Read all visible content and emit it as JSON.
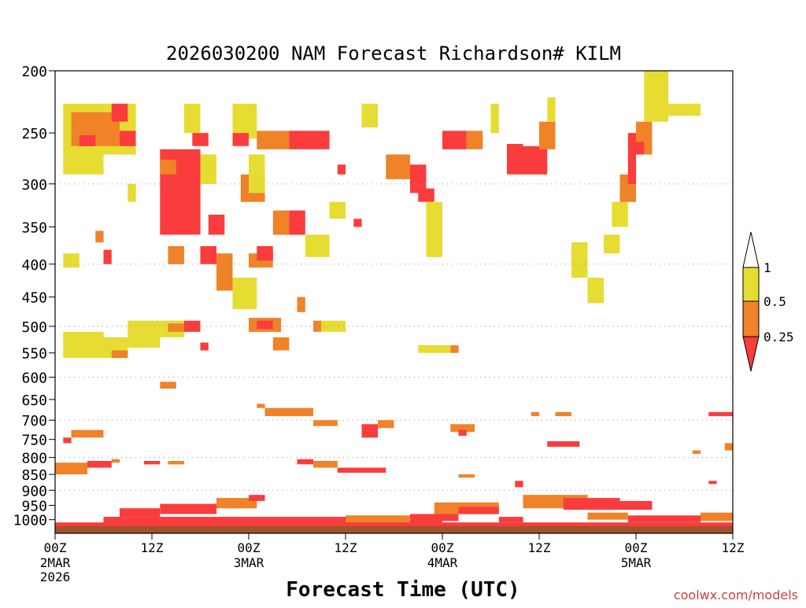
{
  "chart_data": {
    "type": "heatmap",
    "title": "2026030200 NAM Forecast Richardson# KILM",
    "xlabel": "Forecast Time (UTC)",
    "ylabel": "",
    "x_range_hours": [
      0,
      84
    ],
    "pressure_levels": [
      "200",
      "250",
      "300",
      "350",
      "400",
      "450",
      "500",
      "550",
      "600",
      "650",
      "700",
      "750",
      "800",
      "850",
      "900",
      "950",
      "1000"
    ],
    "pressure_range_hPa": [
      200,
      1050
    ],
    "gridlines_hPa": [
      300,
      400,
      500,
      600,
      700,
      800,
      900
    ],
    "x_ticks": [
      {
        "hour": 0,
        "label": "00Z",
        "date": "2MAR",
        "year": "2026"
      },
      {
        "hour": 12,
        "label": "12Z",
        "date": "",
        "year": ""
      },
      {
        "hour": 24,
        "label": "00Z",
        "date": "3MAR",
        "year": ""
      },
      {
        "hour": 36,
        "label": "12Z",
        "date": "",
        "year": ""
      },
      {
        "hour": 48,
        "label": "00Z",
        "date": "4MAR",
        "year": ""
      },
      {
        "hour": 60,
        "label": "12Z",
        "date": "",
        "year": ""
      },
      {
        "hour": 72,
        "label": "00Z",
        "date": "5MAR",
        "year": ""
      },
      {
        "hour": 84,
        "label": "12Z",
        "date": "",
        "year": ""
      }
    ],
    "legend": {
      "placement": "right",
      "labels": [
        "1",
        "0.5",
        "0.25"
      ],
      "bins": [
        {
          "range": "0.5-1",
          "color": "#e6dc32"
        },
        {
          "range": "0.25-0.5",
          "color": "#f08228"
        },
        {
          "range": "<0.25",
          "color": "#fa3c3c"
        }
      ]
    },
    "colors": {
      "low": "#fa3c3c",
      "mid": "#f08228",
      "high": "#e6dc32",
      "ground": "#a0522d",
      "grid": "#a0a0a0"
    },
    "cells": [
      {
        "t0": 1,
        "t1": 10,
        "p0": 225,
        "p1": 270,
        "v": "high"
      },
      {
        "t0": 2,
        "t1": 8,
        "p0": 232,
        "p1": 262,
        "v": "mid"
      },
      {
        "t0": 7,
        "t1": 9,
        "p0": 225,
        "p1": 240,
        "v": "low"
      },
      {
        "t0": 3,
        "t1": 5,
        "p0": 252,
        "p1": 262,
        "v": "low"
      },
      {
        "t0": 1,
        "t1": 6,
        "p0": 270,
        "p1": 290,
        "v": "high"
      },
      {
        "t0": 8,
        "t1": 10,
        "p0": 248,
        "p1": 262,
        "v": "low"
      },
      {
        "t0": 9,
        "t1": 10,
        "p0": 300,
        "p1": 320,
        "v": "high"
      },
      {
        "t0": 13,
        "t1": 18,
        "p0": 265,
        "p1": 360,
        "v": "low"
      },
      {
        "t0": 13,
        "t1": 15,
        "p0": 275,
        "p1": 290,
        "v": "mid"
      },
      {
        "t0": 16,
        "t1": 18,
        "p0": 225,
        "p1": 250,
        "v": "high"
      },
      {
        "t0": 17,
        "t1": 19,
        "p0": 250,
        "p1": 262,
        "v": "low"
      },
      {
        "t0": 18,
        "t1": 20,
        "p0": 270,
        "p1": 300,
        "v": "high"
      },
      {
        "t0": 19,
        "t1": 21,
        "p0": 335,
        "p1": 360,
        "v": "low"
      },
      {
        "t0": 22,
        "t1": 25,
        "p0": 225,
        "p1": 255,
        "v": "high"
      },
      {
        "t0": 22,
        "t1": 24,
        "p0": 250,
        "p1": 262,
        "v": "low"
      },
      {
        "t0": 23,
        "t1": 26,
        "p0": 290,
        "p1": 320,
        "v": "mid"
      },
      {
        "t0": 24,
        "t1": 26,
        "p0": 270,
        "p1": 310,
        "v": "high"
      },
      {
        "t0": 25,
        "t1": 29,
        "p0": 248,
        "p1": 265,
        "v": "mid"
      },
      {
        "t0": 29,
        "t1": 34,
        "p0": 248,
        "p1": 265,
        "v": "low"
      },
      {
        "t0": 27,
        "t1": 29,
        "p0": 330,
        "p1": 360,
        "v": "mid"
      },
      {
        "t0": 29,
        "t1": 31,
        "p0": 330,
        "p1": 360,
        "v": "low"
      },
      {
        "t0": 31,
        "t1": 34,
        "p0": 360,
        "p1": 390,
        "v": "high"
      },
      {
        "t0": 34,
        "t1": 36,
        "p0": 320,
        "p1": 340,
        "v": "high"
      },
      {
        "t0": 35,
        "t1": 36,
        "p0": 280,
        "p1": 290,
        "v": "low"
      },
      {
        "t0": 37,
        "t1": 38,
        "p0": 340,
        "p1": 350,
        "v": "low"
      },
      {
        "t0": 38,
        "t1": 40,
        "p0": 225,
        "p1": 245,
        "v": "high"
      },
      {
        "t0": 41,
        "t1": 44,
        "p0": 270,
        "p1": 295,
        "v": "mid"
      },
      {
        "t0": 44,
        "t1": 46,
        "p0": 280,
        "p1": 310,
        "v": "low"
      },
      {
        "t0": 46,
        "t1": 48,
        "p0": 320,
        "p1": 390,
        "v": "high"
      },
      {
        "t0": 45,
        "t1": 47,
        "p0": 305,
        "p1": 320,
        "v": "low"
      },
      {
        "t0": 48,
        "t1": 51,
        "p0": 248,
        "p1": 265,
        "v": "low"
      },
      {
        "t0": 51,
        "t1": 53,
        "p0": 248,
        "p1": 265,
        "v": "mid"
      },
      {
        "t0": 54,
        "t1": 55,
        "p0": 225,
        "p1": 250,
        "v": "high"
      },
      {
        "t0": 56,
        "t1": 58,
        "p0": 260,
        "p1": 290,
        "v": "low"
      },
      {
        "t0": 58,
        "t1": 61,
        "p0": 262,
        "p1": 290,
        "v": "low"
      },
      {
        "t0": 60,
        "t1": 62,
        "p0": 240,
        "p1": 265,
        "v": "mid"
      },
      {
        "t0": 61,
        "t1": 62,
        "p0": 220,
        "p1": 240,
        "v": "high"
      },
      {
        "t0": 64,
        "t1": 66,
        "p0": 370,
        "p1": 420,
        "v": "high"
      },
      {
        "t0": 66,
        "t1": 68,
        "p0": 420,
        "p1": 460,
        "v": "high"
      },
      {
        "t0": 68,
        "t1": 70,
        "p0": 360,
        "p1": 385,
        "v": "high"
      },
      {
        "t0": 69,
        "t1": 71,
        "p0": 320,
        "p1": 350,
        "v": "high"
      },
      {
        "t0": 70,
        "t1": 72,
        "p0": 290,
        "p1": 320,
        "v": "mid"
      },
      {
        "t0": 71,
        "t1": 72,
        "p0": 250,
        "p1": 300,
        "v": "low"
      },
      {
        "t0": 72,
        "t1": 74,
        "p0": 240,
        "p1": 270,
        "v": "mid"
      },
      {
        "t0": 73,
        "t1": 76,
        "p0": 200,
        "p1": 240,
        "v": "high"
      },
      {
        "t0": 76,
        "t1": 80,
        "p0": 225,
        "p1": 235,
        "v": "high"
      },
      {
        "t0": 72,
        "t1": 73,
        "p0": 258,
        "p1": 270,
        "v": "low"
      },
      {
        "t0": 1,
        "t1": 3,
        "p0": 385,
        "p1": 405,
        "v": "high"
      },
      {
        "t0": 6,
        "t1": 7,
        "p0": 380,
        "p1": 400,
        "v": "low"
      },
      {
        "t0": 5,
        "t1": 6,
        "p0": 355,
        "p1": 370,
        "v": "mid"
      },
      {
        "t0": 14,
        "t1": 16,
        "p0": 375,
        "p1": 400,
        "v": "mid"
      },
      {
        "t0": 18,
        "t1": 20,
        "p0": 375,
        "p1": 400,
        "v": "low"
      },
      {
        "t0": 20,
        "t1": 22,
        "p0": 385,
        "p1": 440,
        "v": "mid"
      },
      {
        "t0": 22,
        "t1": 25,
        "p0": 420,
        "p1": 470,
        "v": "high"
      },
      {
        "t0": 24,
        "t1": 27,
        "p0": 385,
        "p1": 405,
        "v": "mid"
      },
      {
        "t0": 25,
        "t1": 27,
        "p0": 375,
        "p1": 395,
        "v": "low"
      },
      {
        "t0": 30,
        "t1": 31,
        "p0": 450,
        "p1": 475,
        "v": "mid"
      },
      {
        "t0": 1,
        "t1": 6,
        "p0": 510,
        "p1": 560,
        "v": "high"
      },
      {
        "t0": 6,
        "t1": 9,
        "p0": 520,
        "p1": 560,
        "v": "high"
      },
      {
        "t0": 7,
        "t1": 9,
        "p0": 545,
        "p1": 560,
        "v": "mid"
      },
      {
        "t0": 9,
        "t1": 13,
        "p0": 490,
        "p1": 540,
        "v": "high"
      },
      {
        "t0": 13,
        "t1": 16,
        "p0": 490,
        "p1": 520,
        "v": "high"
      },
      {
        "t0": 14,
        "t1": 16,
        "p0": 495,
        "p1": 510,
        "v": "mid"
      },
      {
        "t0": 16,
        "t1": 18,
        "p0": 490,
        "p1": 510,
        "v": "low"
      },
      {
        "t0": 18,
        "t1": 19,
        "p0": 530,
        "p1": 545,
        "v": "low"
      },
      {
        "t0": 24,
        "t1": 28,
        "p0": 485,
        "p1": 510,
        "v": "mid"
      },
      {
        "t0": 25,
        "t1": 27,
        "p0": 490,
        "p1": 505,
        "v": "low"
      },
      {
        "t0": 27,
        "t1": 29,
        "p0": 520,
        "p1": 545,
        "v": "mid"
      },
      {
        "t0": 32,
        "t1": 33,
        "p0": 490,
        "p1": 510,
        "v": "mid"
      },
      {
        "t0": 33,
        "t1": 36,
        "p0": 490,
        "p1": 510,
        "v": "high"
      },
      {
        "t0": 45,
        "t1": 49,
        "p0": 535,
        "p1": 550,
        "v": "high"
      },
      {
        "t0": 49,
        "t1": 50,
        "p0": 535,
        "p1": 550,
        "v": "mid"
      },
      {
        "t0": 13,
        "t1": 15,
        "p0": 610,
        "p1": 625,
        "v": "mid"
      },
      {
        "t0": 25,
        "t1": 26,
        "p0": 660,
        "p1": 670,
        "v": "mid"
      },
      {
        "t0": 26,
        "t1": 32,
        "p0": 670,
        "p1": 690,
        "v": "mid"
      },
      {
        "t0": 32,
        "t1": 35,
        "p0": 700,
        "p1": 715,
        "v": "mid"
      },
      {
        "t0": 38,
        "t1": 40,
        "p0": 710,
        "p1": 745,
        "v": "low"
      },
      {
        "t0": 40,
        "t1": 42,
        "p0": 700,
        "p1": 720,
        "v": "mid"
      },
      {
        "t0": 49,
        "t1": 52,
        "p0": 710,
        "p1": 730,
        "v": "mid"
      },
      {
        "t0": 50,
        "t1": 51,
        "p0": 725,
        "p1": 740,
        "v": "low"
      },
      {
        "t0": 59,
        "t1": 60,
        "p0": 680,
        "p1": 690,
        "v": "mid"
      },
      {
        "t0": 62,
        "t1": 64,
        "p0": 680,
        "p1": 690,
        "v": "mid"
      },
      {
        "t0": 81,
        "t1": 84,
        "p0": 680,
        "p1": 690,
        "v": "low"
      },
      {
        "t0": 2,
        "t1": 6,
        "p0": 725,
        "p1": 745,
        "v": "mid"
      },
      {
        "t0": 1,
        "t1": 2,
        "p0": 745,
        "p1": 760,
        "v": "low"
      },
      {
        "t0": 61,
        "t1": 65,
        "p0": 755,
        "p1": 770,
        "v": "low"
      },
      {
        "t0": 83,
        "t1": 84,
        "p0": 760,
        "p1": 780,
        "v": "mid"
      },
      {
        "t0": 79,
        "t1": 80,
        "p0": 780,
        "p1": 790,
        "v": "mid"
      },
      {
        "t0": 0,
        "t1": 4,
        "p0": 815,
        "p1": 850,
        "v": "mid"
      },
      {
        "t0": 4,
        "t1": 7,
        "p0": 810,
        "p1": 830,
        "v": "low"
      },
      {
        "t0": 7,
        "t1": 8,
        "p0": 805,
        "p1": 815,
        "v": "mid"
      },
      {
        "t0": 11,
        "t1": 13,
        "p0": 810,
        "p1": 820,
        "v": "low"
      },
      {
        "t0": 14,
        "t1": 16,
        "p0": 810,
        "p1": 820,
        "v": "mid"
      },
      {
        "t0": 30,
        "t1": 32,
        "p0": 805,
        "p1": 820,
        "v": "low"
      },
      {
        "t0": 32,
        "t1": 35,
        "p0": 810,
        "p1": 830,
        "v": "mid"
      },
      {
        "t0": 35,
        "t1": 41,
        "p0": 830,
        "p1": 845,
        "v": "low"
      },
      {
        "t0": 50,
        "t1": 52,
        "p0": 850,
        "p1": 860,
        "v": "mid"
      },
      {
        "t0": 57,
        "t1": 58,
        "p0": 870,
        "p1": 890,
        "v": "low"
      },
      {
        "t0": 81,
        "t1": 82,
        "p0": 870,
        "p1": 880,
        "v": "low"
      },
      {
        "t0": 8,
        "t1": 13,
        "p0": 960,
        "p1": 990,
        "v": "low"
      },
      {
        "t0": 13,
        "t1": 20,
        "p0": 945,
        "p1": 980,
        "v": "low"
      },
      {
        "t0": 20,
        "t1": 25,
        "p0": 925,
        "p1": 960,
        "v": "mid"
      },
      {
        "t0": 24,
        "t1": 26,
        "p0": 915,
        "p1": 935,
        "v": "low"
      },
      {
        "t0": 6,
        "t1": 48,
        "p0": 990,
        "p1": 1015,
        "v": "low"
      },
      {
        "t0": 26,
        "t1": 36,
        "p0": 995,
        "p1": 1015,
        "v": "low"
      },
      {
        "t0": 36,
        "t1": 44,
        "p0": 985,
        "p1": 1010,
        "v": "mid"
      },
      {
        "t0": 44,
        "t1": 50,
        "p0": 980,
        "p1": 1005,
        "v": "low"
      },
      {
        "t0": 47,
        "t1": 55,
        "p0": 940,
        "p1": 980,
        "v": "mid"
      },
      {
        "t0": 50,
        "t1": 55,
        "p0": 955,
        "p1": 980,
        "v": "low"
      },
      {
        "t0": 55,
        "t1": 58,
        "p0": 990,
        "p1": 1010,
        "v": "low"
      },
      {
        "t0": 58,
        "t1": 66,
        "p0": 915,
        "p1": 960,
        "v": "mid"
      },
      {
        "t0": 63,
        "t1": 70,
        "p0": 925,
        "p1": 965,
        "v": "low"
      },
      {
        "t0": 66,
        "t1": 74,
        "p0": 935,
        "p1": 965,
        "v": "low"
      },
      {
        "t0": 66,
        "t1": 71,
        "p0": 975,
        "p1": 1000,
        "v": "mid"
      },
      {
        "t0": 71,
        "t1": 80,
        "p0": 985,
        "p1": 1010,
        "v": "low"
      },
      {
        "t0": 80,
        "t1": 84,
        "p0": 975,
        "p1": 1005,
        "v": "mid"
      },
      {
        "t0": 0,
        "t1": 84,
        "p0": 1010,
        "p1": 1030,
        "v": "low"
      }
    ]
  },
  "watermark": "coolwx.com/models"
}
